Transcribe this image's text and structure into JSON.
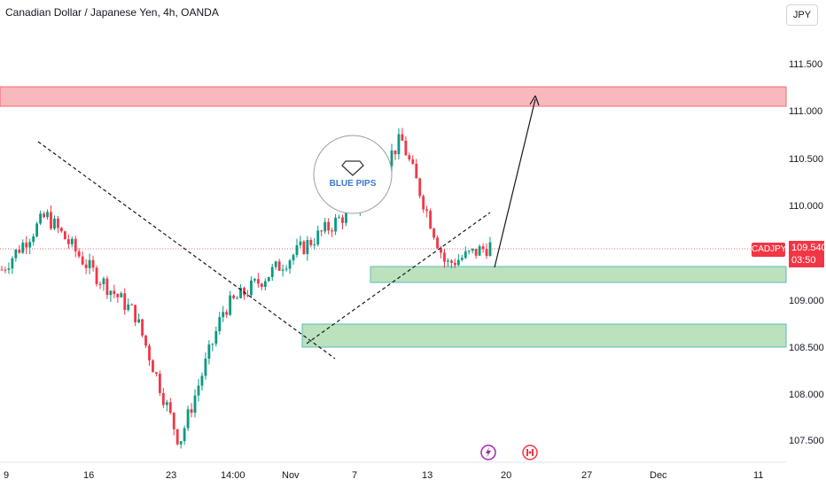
{
  "header": {
    "title": "Canadian Dollar / Japanese Yen, 4h, OANDA",
    "currency_button": "JPY"
  },
  "price_tag": {
    "symbol": "CADJPY",
    "price": "109.540",
    "countdown": "03:50"
  },
  "logo": {
    "text": "BLUE PIPS",
    "icon": "diamond-icon"
  },
  "colors": {
    "up": "#089981",
    "down": "#f23645",
    "resistance_zone": "#f7a1a7",
    "support_zone": "#a5d8a8",
    "trendline": "#131722"
  },
  "event_icons": [
    "lightning-icon",
    "canada-flag-icon"
  ],
  "chart_data": {
    "type": "candlestick",
    "title": "Canadian Dollar / Japanese Yen, 4h, OANDA",
    "ylim": [
      107.35,
      111.85
    ],
    "y_ticks": [
      "111.500",
      "111.000",
      "110.500",
      "110.000",
      "109.000",
      "108.500",
      "108.000",
      "107.500"
    ],
    "x_ticks": [
      "9",
      "16",
      "23",
      "14:00",
      "Nov",
      "7",
      "13",
      "20",
      "27",
      "Dec",
      "11"
    ],
    "last_price": 109.54,
    "zones": [
      {
        "name": "resistance",
        "from": 111.05,
        "to": 111.27
      },
      {
        "name": "support-upper",
        "from": 109.18,
        "to": 109.33
      },
      {
        "name": "support-lower",
        "from": 108.5,
        "to": 108.73
      }
    ],
    "approx_path": [
      {
        "x": "9",
        "price": 109.3
      },
      {
        "x": "16",
        "price": 109.85
      },
      {
        "x": "23",
        "price": 109.3
      },
      {
        "x": "14:00",
        "price": 108.85
      },
      {
        "x": "14:00+",
        "price": 107.55
      },
      {
        "x": "Nov",
        "price": 108.9
      },
      {
        "x": "Nov+",
        "price": 109.25
      },
      {
        "x": "7",
        "price": 109.6
      },
      {
        "x": "13",
        "price": 109.95
      },
      {
        "x": "16",
        "price": 110.62
      },
      {
        "x": "18",
        "price": 109.35
      },
      {
        "x": "19",
        "price": 109.54
      }
    ],
    "grid": false
  }
}
